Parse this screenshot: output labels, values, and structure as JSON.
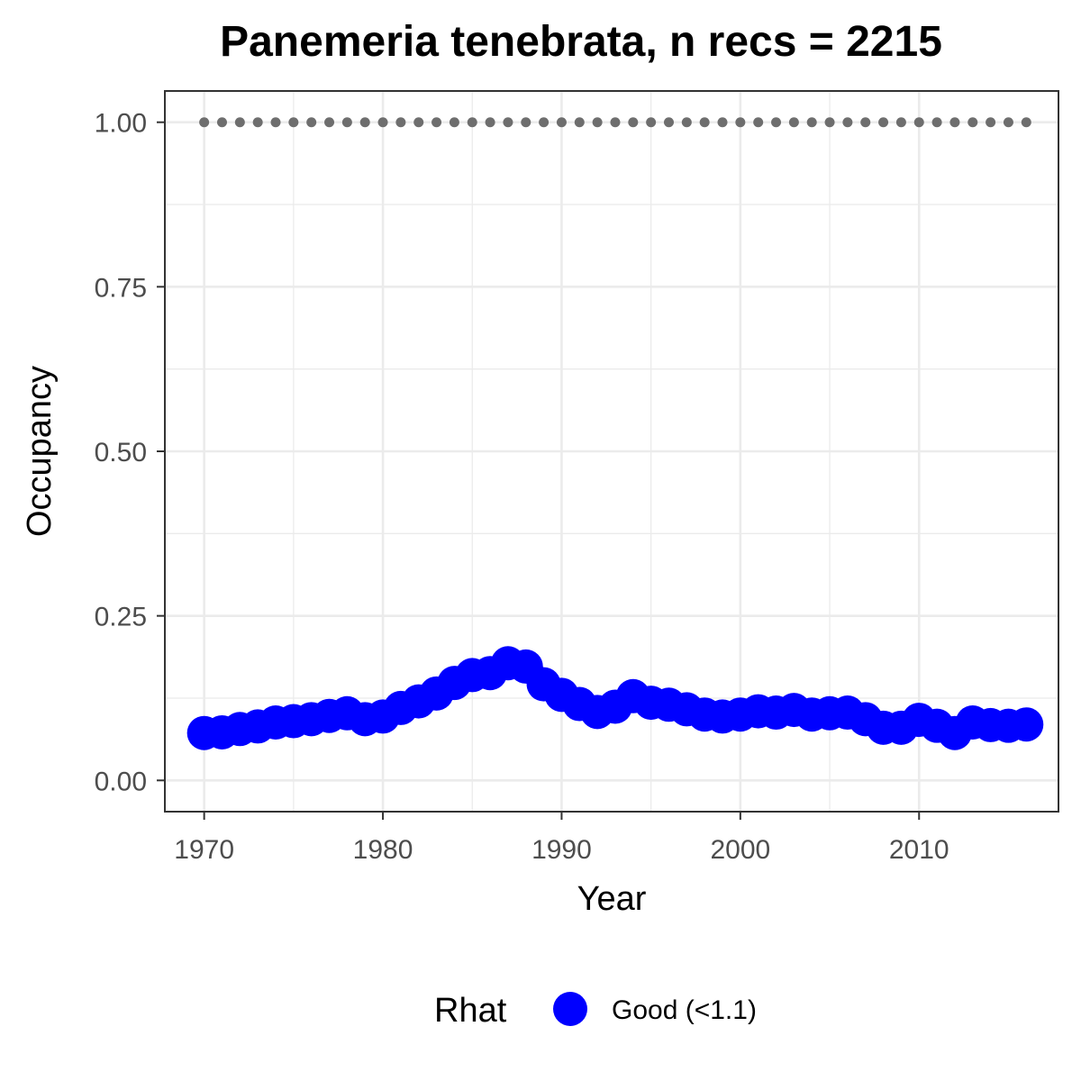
{
  "chart_data": {
    "type": "line",
    "title": "Panemeria tenebrata, n recs = 2215",
    "xlabel": "Year",
    "ylabel": "Occupancy",
    "xlim": [
      1967.8,
      2017.8
    ],
    "ylim": [
      -0.0475,
      1.0475
    ],
    "x_ticks": [
      1970,
      1980,
      1990,
      2000,
      2010
    ],
    "x_tick_labels": [
      "1970",
      "1980",
      "1990",
      "2000",
      "2010"
    ],
    "y_ticks": [
      0,
      0.25,
      0.5,
      0.75,
      1.0
    ],
    "y_tick_labels": [
      "0.00",
      "0.25",
      "0.50",
      "0.75",
      "1.00"
    ],
    "grid": true,
    "legend": {
      "title": "Rhat",
      "position": "bottom",
      "entries": [
        {
          "label": "Good (<1.1)",
          "color": "#0000ff"
        }
      ]
    },
    "colors": {
      "series": "#0000ff",
      "reference": "#6e6e6e",
      "band": "#d9d9d9",
      "grid": "#ebebeb",
      "panel_border": "#333333"
    },
    "series": [
      {
        "x": [
          1970,
          1971,
          1972,
          1973,
          1974,
          1975,
          1976,
          1977,
          1978,
          1979,
          1980,
          1981,
          1982,
          1983,
          1984,
          1985,
          1986,
          1987,
          1988,
          1989,
          1990,
          1991,
          1992,
          1993,
          1994,
          1995,
          1996,
          1997,
          1998,
          1999,
          2000,
          2001,
          2002,
          2003,
          2004,
          2005,
          2006,
          2007,
          2008,
          2009,
          2010,
          2011,
          2012,
          2013,
          2014,
          2015,
          2016
        ],
        "values": [
          0.072,
          0.073,
          0.078,
          0.082,
          0.088,
          0.09,
          0.093,
          0.098,
          0.102,
          0.093,
          0.097,
          0.11,
          0.12,
          0.132,
          0.148,
          0.16,
          0.163,
          0.178,
          0.173,
          0.146,
          0.13,
          0.116,
          0.104,
          0.112,
          0.128,
          0.118,
          0.115,
          0.108,
          0.1,
          0.097,
          0.1,
          0.105,
          0.103,
          0.107,
          0.1,
          0.102,
          0.103,
          0.093,
          0.08,
          0.08,
          0.092,
          0.083,
          0.072,
          0.088,
          0.084,
          0.083,
          0.085
        ]
      },
      {
        "x": [
          1970,
          1971,
          1972,
          1973,
          1974,
          1975,
          1976,
          1977,
          1978,
          1979,
          1980,
          1981,
          1982,
          1983,
          1984,
          1985,
          1986,
          1987,
          1988,
          1989,
          1990,
          1991,
          1992,
          1993,
          1994,
          1995,
          1996,
          1997,
          1998,
          1999,
          2000,
          2001,
          2002,
          2003,
          2004,
          2005,
          2006,
          2007,
          2008,
          2009,
          2010,
          2011,
          2012,
          2013,
          2014,
          2015,
          2016
        ],
        "values": [
          1,
          1,
          1,
          1,
          1,
          1,
          1,
          1,
          1,
          1,
          1,
          1,
          1,
          1,
          1,
          1,
          1,
          1,
          1,
          1,
          1,
          1,
          1,
          1,
          1,
          1,
          1,
          1,
          1,
          1,
          1,
          1,
          1,
          1,
          1,
          1,
          1,
          1,
          1,
          1,
          1,
          1,
          1,
          1,
          1,
          1,
          1
        ]
      }
    ]
  }
}
